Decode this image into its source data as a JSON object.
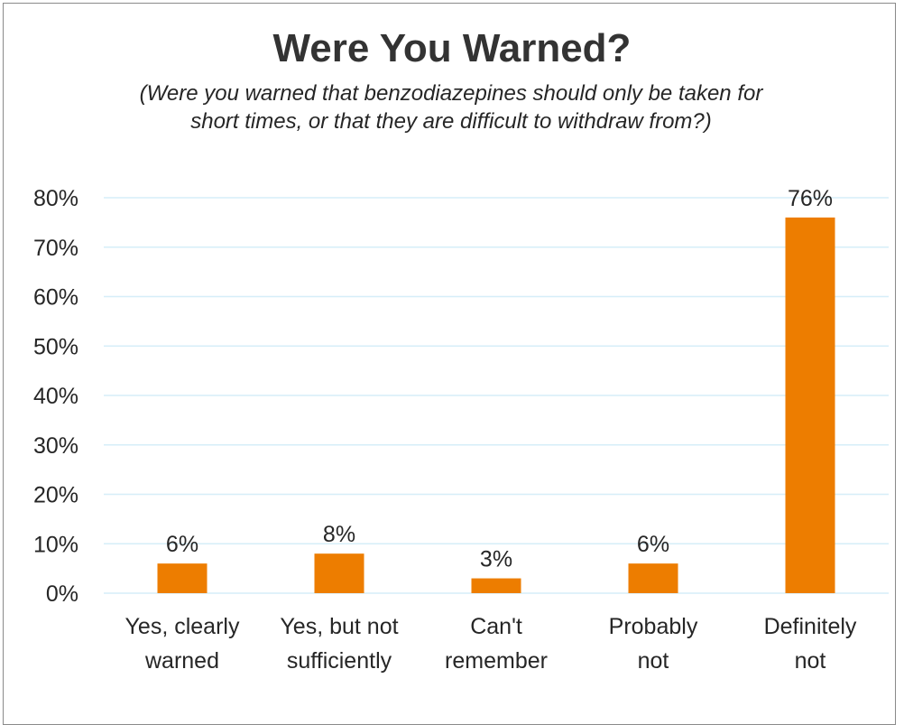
{
  "chart_data": {
    "type": "bar",
    "title": "Were You Warned?",
    "subtitle": "(Were you warned that benzodiazepines should only be taken for short times, or that they are difficult to withdraw from?)",
    "categories": [
      [
        "Yes, clearly",
        "warned"
      ],
      [
        "Yes, but not",
        "sufficiently"
      ],
      [
        "Can't",
        "remember"
      ],
      [
        "Probably",
        "not"
      ],
      [
        "Definitely",
        "not"
      ]
    ],
    "values": [
      6,
      8,
      3,
      6,
      76
    ],
    "data_labels": [
      "6%",
      "8%",
      "3%",
      "6%",
      "76%"
    ],
    "yticks": [
      "0%",
      "10%",
      "20%",
      "30%",
      "40%",
      "50%",
      "60%",
      "70%",
      "80%"
    ],
    "ylim": [
      0,
      80
    ],
    "grid": true,
    "bar_color": "#ED7D00",
    "grid_color": "#D6EEF8"
  }
}
